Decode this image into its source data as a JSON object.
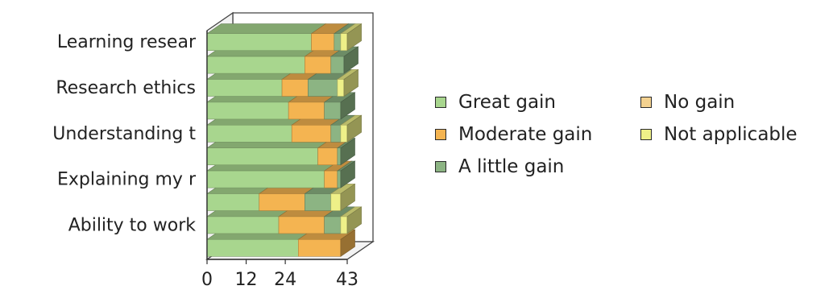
{
  "chart_data": {
    "type": "bar",
    "orientation": "horizontal",
    "stacked": true,
    "style": "3d",
    "title": "",
    "xlabel": "",
    "ylabel": "",
    "xlim": [
      0,
      43
    ],
    "x_ticks": [
      "0",
      "12",
      "24",
      "43"
    ],
    "categories": [
      "Learning resear",
      "",
      "Research ethics",
      "",
      "Understanding t",
      "",
      "Explaining my r",
      "",
      "Ability to work",
      ""
    ],
    "series": [
      {
        "name": "Great gain",
        "color": "#a8d68e",
        "values": [
          32,
          30,
          23,
          25,
          26,
          34,
          36,
          16,
          22,
          28
        ]
      },
      {
        "name": "Moderate gain",
        "color": "#f4b451",
        "values": [
          7,
          8,
          8,
          11,
          12,
          6,
          4,
          14,
          14,
          13
        ]
      },
      {
        "name": "A little gain",
        "color": "#8cb483",
        "values": [
          2,
          4,
          9,
          5,
          3,
          1,
          1,
          8,
          5,
          0
        ]
      },
      {
        "name": "No gain",
        "color": "#f4d290",
        "values": [
          0,
          0,
          0,
          0,
          0,
          0,
          0,
          0,
          0,
          0
        ]
      },
      {
        "name": "Not applicable",
        "color": "#eef088",
        "values": [
          2,
          0,
          2,
          0,
          2,
          0,
          0,
          3,
          2,
          0
        ]
      }
    ],
    "legend": {
      "position": "right",
      "layout": "two-columns",
      "items": [
        "Great gain",
        "No gain",
        "Moderate gain",
        "Not applicable",
        "A little gain"
      ]
    },
    "grid": false
  }
}
